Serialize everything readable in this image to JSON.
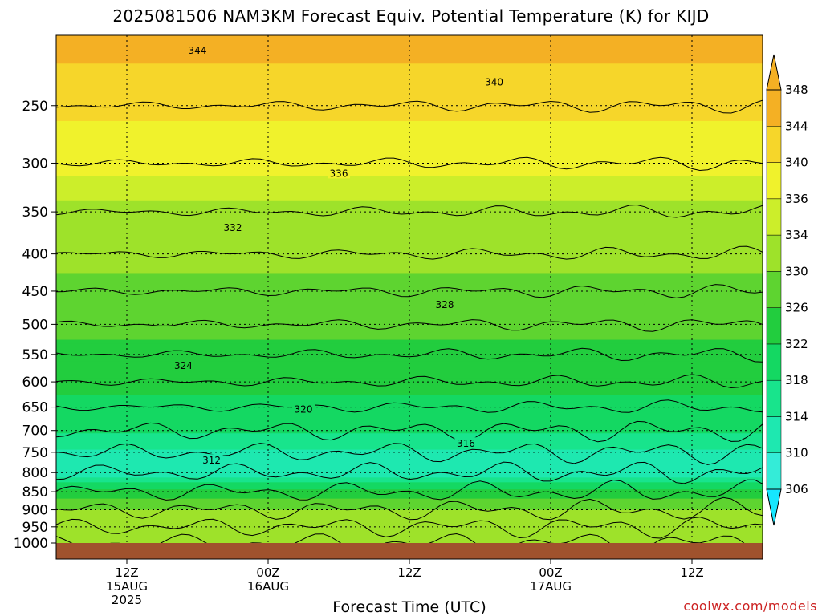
{
  "title": "2025081506 NAM3KM Forecast Equiv. Potential Temperature (K) for KIJD",
  "xlabel": "Forecast Time (UTC)",
  "credit": "coolwx.com/models",
  "chart_data": {
    "type": "heatmap",
    "title": "2025081506 NAM3KM Forecast Equiv. Potential Temperature (K) for KIJD",
    "xlabel": "Forecast Time (UTC)",
    "ylabel": "",
    "y_scale": "log-pressure",
    "ylim": [
      1000,
      200
    ],
    "y_ticks": [
      250,
      300,
      350,
      400,
      450,
      500,
      550,
      600,
      650,
      700,
      750,
      800,
      850,
      900,
      950,
      1000
    ],
    "x_ticks": [
      {
        "hours": 6,
        "label": [
          "12Z",
          "15AUG",
          "2025"
        ]
      },
      {
        "hours": 18,
        "label": [
          "00Z",
          "16AUG"
        ]
      },
      {
        "hours": 30,
        "label": [
          "12Z"
        ]
      },
      {
        "hours": 42,
        "label": [
          "00Z",
          "17AUG"
        ]
      },
      {
        "hours": 54,
        "label": [
          "12Z"
        ]
      }
    ],
    "xlim_hours": [
      0,
      60
    ],
    "grid": true,
    "colorbar": {
      "levels": [
        306,
        310,
        314,
        318,
        322,
        326,
        330,
        334,
        336,
        340,
        344,
        348
      ],
      "colors": [
        "#16e6ff",
        "#34ecd8",
        "#1ee8b0",
        "#18e48c",
        "#14d862",
        "#22cd3e",
        "#5ed430",
        "#9ee22a",
        "#ccee2a",
        "#f0f22c",
        "#f6d62a",
        "#f4b024"
      ],
      "placement": "right"
    },
    "contour_labels": [
      344,
      340,
      336,
      332,
      328,
      324,
      320,
      316,
      312
    ],
    "profile_levels": [
      {
        "pressure": 200,
        "theta_e": 346
      },
      {
        "pressure": 250,
        "theta_e": 341
      },
      {
        "pressure": 300,
        "theta_e": 337
      },
      {
        "pressure": 350,
        "theta_e": 333
      },
      {
        "pressure": 400,
        "theta_e": 331
      },
      {
        "pressure": 450,
        "theta_e": 329
      },
      {
        "pressure": 500,
        "theta_e": 327
      },
      {
        "pressure": 550,
        "theta_e": 325
      },
      {
        "pressure": 600,
        "theta_e": 323
      },
      {
        "pressure": 650,
        "theta_e": 321
      },
      {
        "pressure": 700,
        "theta_e": 319
      },
      {
        "pressure": 750,
        "theta_e": 313
      },
      {
        "pressure": 800,
        "theta_e": 311
      },
      {
        "pressure": 850,
        "theta_e": 324
      },
      {
        "pressure": 900,
        "theta_e": 330
      },
      {
        "pressure": 950,
        "theta_e": 333
      },
      {
        "pressure": 1000,
        "theta_e": 334
      }
    ]
  }
}
